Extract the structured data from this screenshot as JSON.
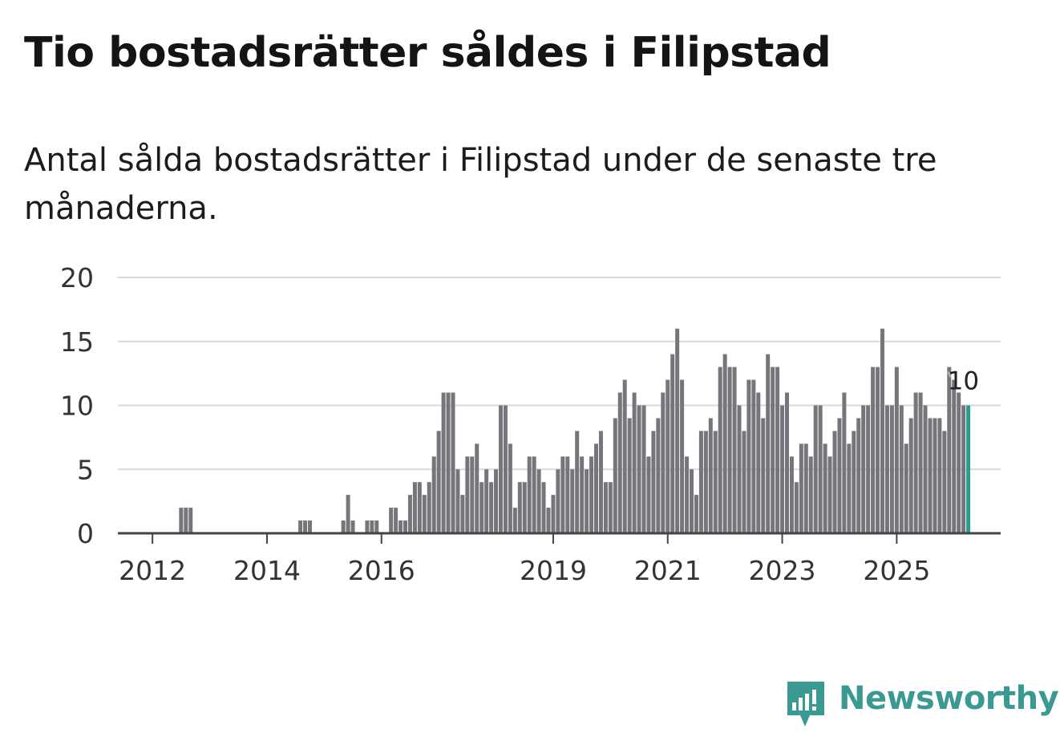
{
  "title": "Tio bostadsrätter såldes i Filipstad",
  "subtitle": "Antal sålda bostadsrätter i Filipstad under de senaste tre månaderna.",
  "brand": {
    "name": "Newsworthy",
    "color": "#3a9a92",
    "icon": "newsworthy-logo-icon"
  },
  "chart_data": {
    "type": "bar",
    "title": "Tio bostadsrätter såldes i Filipstad",
    "xlabel": "",
    "ylabel": "",
    "ylim": [
      0,
      20
    ],
    "yticks": [
      0,
      5,
      10,
      15,
      20
    ],
    "grid": true,
    "bar_color": "#76757b",
    "highlight_color": "#2a9d8f",
    "start": "2011-09",
    "frequency": "monthly",
    "x_ticks": [
      {
        "label": "2012",
        "index": 5
      },
      {
        "label": "2014",
        "index": 29
      },
      {
        "label": "2016",
        "index": 53
      },
      {
        "label": "2019",
        "index": 89
      },
      {
        "label": "2021",
        "index": 113
      },
      {
        "label": "2023",
        "index": 137
      },
      {
        "label": "2025",
        "index": 161
      }
    ],
    "values": [
      0,
      0,
      0,
      0,
      0,
      0,
      0,
      0,
      0,
      0,
      0,
      2,
      2,
      2,
      0,
      0,
      0,
      0,
      0,
      0,
      0,
      0,
      0,
      0,
      0,
      0,
      0,
      0,
      0,
      0,
      0,
      0,
      0,
      0,
      0,
      0,
      1,
      1,
      1,
      0,
      0,
      0,
      0,
      0,
      0,
      1,
      3,
      1,
      0,
      0,
      1,
      1,
      1,
      0,
      0,
      2,
      2,
      1,
      1,
      3,
      4,
      4,
      3,
      4,
      6,
      8,
      11,
      11,
      11,
      5,
      3,
      6,
      6,
      7,
      4,
      5,
      4,
      5,
      10,
      10,
      7,
      2,
      4,
      4,
      6,
      6,
      5,
      4,
      2,
      3,
      5,
      6,
      6,
      5,
      8,
      6,
      5,
      6,
      7,
      8,
      4,
      4,
      9,
      11,
      12,
      9,
      11,
      10,
      10,
      6,
      8,
      9,
      11,
      12,
      14,
      16,
      12,
      6,
      5,
      3,
      8,
      8,
      9,
      8,
      13,
      14,
      13,
      13,
      10,
      8,
      12,
      12,
      11,
      9,
      14,
      13,
      13,
      10,
      11,
      6,
      4,
      7,
      7,
      6,
      10,
      10,
      7,
      6,
      8,
      9,
      11,
      7,
      8,
      9,
      10,
      10,
      13,
      13,
      16,
      10,
      10,
      13,
      10,
      7,
      9,
      11,
      11,
      10,
      9,
      9,
      9,
      8,
      13,
      12,
      11,
      10,
      10
    ],
    "annotation": {
      "label": "10",
      "value": 10,
      "index": 175
    }
  }
}
